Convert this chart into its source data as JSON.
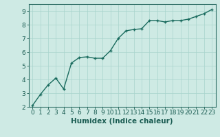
{
  "x": [
    0,
    1,
    2,
    3,
    4,
    5,
    6,
    7,
    8,
    9,
    10,
    11,
    12,
    13,
    14,
    15,
    16,
    17,
    18,
    19,
    20,
    21,
    22,
    23
  ],
  "y": [
    2.1,
    2.9,
    3.6,
    4.1,
    3.3,
    5.2,
    5.6,
    5.65,
    5.55,
    5.55,
    6.1,
    7.0,
    7.55,
    7.65,
    7.7,
    8.3,
    8.3,
    8.2,
    8.3,
    8.3,
    8.4,
    8.6,
    8.8,
    9.1
  ],
  "xlabel": "Humidex (Indice chaleur)",
  "ylim": [
    2,
    9.5
  ],
  "xlim": [
    -0.5,
    23.5
  ],
  "yticks": [
    2,
    3,
    4,
    5,
    6,
    7,
    8,
    9
  ],
  "xticks": [
    0,
    1,
    2,
    3,
    4,
    5,
    6,
    7,
    8,
    9,
    10,
    11,
    12,
    13,
    14,
    15,
    16,
    17,
    18,
    19,
    20,
    21,
    22,
    23
  ],
  "line_color": "#1a6b5e",
  "marker_color": "#1a6b5e",
  "bg_color": "#ceeae4",
  "grid_color": "#a8d4cc",
  "axis_color": "#2d6e65",
  "label_color": "#1a5c52",
  "tick_label_color": "#1a5c52",
  "xlabel_fontsize": 7.5,
  "tick_fontsize": 6.5,
  "line_width": 1.0,
  "marker_size": 3.5
}
